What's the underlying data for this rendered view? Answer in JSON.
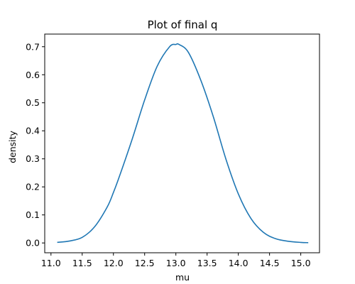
{
  "chart_data": {
    "type": "line",
    "title": "Plot of final q",
    "xlabel": "mu",
    "ylabel": "density",
    "xlim": [
      10.9,
      15.3
    ],
    "ylim": [
      -0.035,
      0.745
    ],
    "xticks": [
      11.0,
      11.5,
      12.0,
      12.5,
      13.0,
      13.5,
      14.0,
      14.5,
      15.0
    ],
    "xtick_labels": [
      "11.0",
      "11.5",
      "12.0",
      "12.5",
      "13.0",
      "13.5",
      "14.0",
      "14.5",
      "15.0"
    ],
    "yticks": [
      0.0,
      0.1,
      0.2,
      0.3,
      0.4,
      0.5,
      0.6,
      0.7
    ],
    "ytick_labels": [
      "0.0",
      "0.1",
      "0.2",
      "0.3",
      "0.4",
      "0.5",
      "0.6",
      "0.7"
    ],
    "grid": false,
    "series": [
      {
        "color": "#1f77b4",
        "x": [
          11.1,
          11.3,
          11.5,
          11.7,
          11.9,
          12.0,
          12.1,
          12.3,
          12.5,
          12.7,
          12.9,
          13.0,
          13.05,
          13.2,
          13.4,
          13.6,
          13.8,
          14.0,
          14.2,
          14.4,
          14.6,
          14.8,
          15.0,
          15.12
        ],
        "y": [
          0.002,
          0.007,
          0.02,
          0.058,
          0.128,
          0.18,
          0.24,
          0.37,
          0.51,
          0.63,
          0.7,
          0.708,
          0.708,
          0.68,
          0.58,
          0.45,
          0.3,
          0.175,
          0.088,
          0.038,
          0.015,
          0.006,
          0.002,
          0.001
        ]
      }
    ]
  }
}
